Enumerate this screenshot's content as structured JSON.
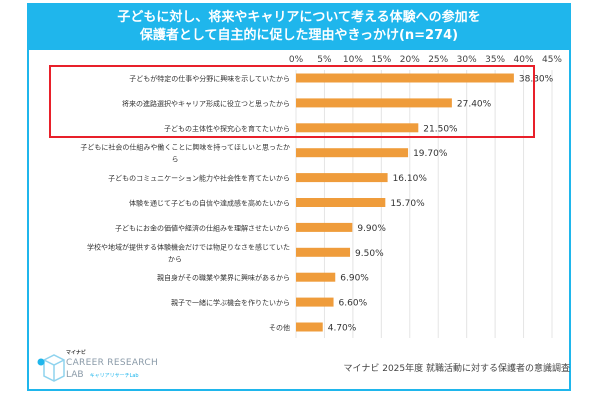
{
  "title_line1": "子どもに対し、将来やキャリアについて考える体験への参加を",
  "title_line2": "保護者として自主的に促した理由やきっかけ(n=274)",
  "chart_data": {
    "type": "bar",
    "orientation": "horizontal",
    "categories": [
      [
        "子どもが特定の仕事や分野に興味を示していたから"
      ],
      [
        "将来の進路選択やキャリア形成に役立つと思ったから"
      ],
      [
        "子どもの主体性や探究心を育てたいから"
      ],
      [
        "子どもに社会の仕組みや働くことに興味を持ってほしいと思ったか",
        "ら"
      ],
      [
        "子どものコミュニケーション能力や社会性を育てたいから"
      ],
      [
        "体験を通じて子どもの自信や達成感を高めたいから"
      ],
      [
        "子どもにお金の価値や経済の仕組みを理解させたいから"
      ],
      [
        "学校や地域が提供する体験機会だけでは物足りなさを感じていた",
        "から"
      ],
      [
        "親自身がその職業や業界に興味があるから"
      ],
      [
        "親子で一緒に学ぶ機会を作りたいから"
      ],
      [
        "その他"
      ]
    ],
    "values": [
      38.3,
      27.4,
      21.5,
      19.7,
      16.1,
      15.7,
      9.9,
      9.5,
      6.9,
      6.6,
      4.7
    ],
    "data_labels": [
      "38.30%",
      "27.40%",
      "21.50%",
      "19.70%",
      "16.10%",
      "15.70%",
      "9.90%",
      "9.50%",
      "6.90%",
      "6.60%",
      "4.70%"
    ],
    "xlim": [
      0,
      45
    ],
    "ticks": [
      "0%",
      "5%",
      "10%",
      "15%",
      "20%",
      "25%",
      "30%",
      "35%",
      "40%",
      "45%"
    ],
    "tick_values": [
      0,
      5,
      10,
      15,
      20,
      25,
      30,
      35,
      40,
      45
    ],
    "axis_position": "top",
    "grid": true,
    "highlighted_top": 3,
    "bar_color": "#ef9c3b",
    "highlight_color": "#e8202a"
  },
  "logo": {
    "brand": "マイナビ",
    "line1": "CAREER RESEARCH",
    "line2": "LAB",
    "line3": "キャリアリサーチLab"
  },
  "source": "マイナビ 2025年度 就職活動に対する保護者の意識調査",
  "colors": {
    "title_bg": "#1fb6ec"
  }
}
